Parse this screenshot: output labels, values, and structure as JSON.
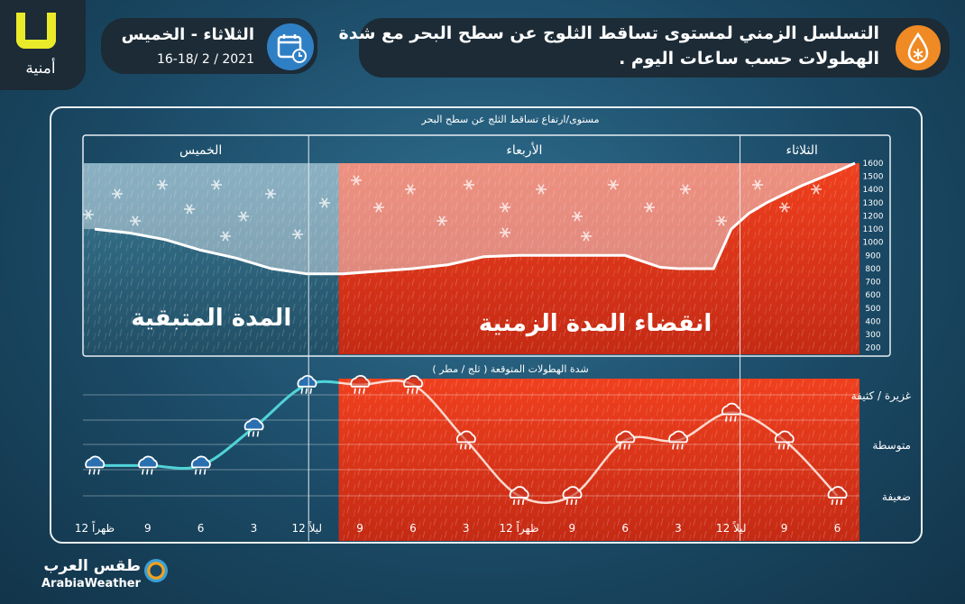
{
  "header": {
    "title_line1": "التسلسل الزمني لمستوى تساقط الثلوج عن سطح البحر مع شدة",
    "title_line2": "الهطولات حسب ساعات اليوم .",
    "date_days": "الثلاثاء - الخميس",
    "date_range": "16-18/ 2 / 2021",
    "logo_text": "أمنية",
    "snow_drop_icon": "snow-drop-icon",
    "calendar_icon": "calendar-icon"
  },
  "footer": {
    "brand_ar": "طقس العرب",
    "brand_en": "ArabiaWeather"
  },
  "colors": {
    "panel_bg": "#2a5a73",
    "remaining_tint": "#9fb6c4",
    "elapsed_red": "#e8361e",
    "teal_line": "#4fd3d8",
    "snow_line": "#ffffff",
    "day_border": "#e8eef2"
  },
  "chart_data": [
    {
      "type": "area",
      "title": "مستوى/ارتفاع تساقط الثلج عن سطح البحر",
      "days": [
        {
          "name": "الخميس"
        },
        {
          "name": "الأربعاء"
        },
        {
          "name": "الثلاثاء"
        }
      ],
      "y_ticks": [
        200,
        300,
        400,
        500,
        600,
        700,
        800,
        900,
        1000,
        1100,
        1200,
        1300,
        1400,
        1500,
        1600
      ],
      "ylim": [
        150,
        1600
      ],
      "grid": true,
      "x_tick_labels": [
        "12 ظهراً",
        "9",
        "6",
        "3",
        "12 ليلاً",
        "9",
        "6",
        "3",
        "12 ظهراً",
        "9",
        "6",
        "3",
        "12 ليلاً",
        "9",
        "6"
      ],
      "hours_from_left": [
        0,
        3,
        6,
        9,
        12,
        15,
        18,
        21,
        24,
        27,
        30,
        33,
        36,
        39,
        42
      ],
      "remaining_label": "المدة المتبقية",
      "elapsed_label": "انقضاء المدة الزمنية",
      "now_hour": 13.8,
      "day_boundaries_hours": [
        12.1,
        36.5
      ],
      "series": [
        {
          "x": [
            0,
            2,
            4,
            6,
            8,
            10,
            12,
            14,
            16,
            18,
            20,
            21,
            22,
            24,
            26,
            28,
            30,
            32,
            33,
            34,
            35,
            36,
            37,
            38,
            40,
            42,
            43
          ],
          "y": [
            1100,
            1070,
            1020,
            940,
            880,
            800,
            760,
            760,
            780,
            800,
            830,
            860,
            890,
            900,
            900,
            900,
            900,
            810,
            800,
            800,
            800,
            1100,
            1220,
            1300,
            1430,
            1540,
            1600
          ]
        }
      ]
    },
    {
      "type": "line",
      "title": "شدة الهطولات المتوقعة ( ثلج / مطر )",
      "y_categories": [
        "ضعيفة",
        "متوسطة",
        "غزيرة / كثيفة"
      ],
      "x_hours": [
        0,
        3,
        6,
        9,
        12,
        15,
        18,
        21,
        24,
        27,
        30,
        33,
        36,
        39,
        42
      ],
      "level": [
        0.6,
        0.6,
        0.6,
        1.35,
        2.2,
        2.2,
        2.2,
        1.1,
        0,
        0,
        1.1,
        1.1,
        1.65,
        1.1,
        0
      ]
    }
  ]
}
